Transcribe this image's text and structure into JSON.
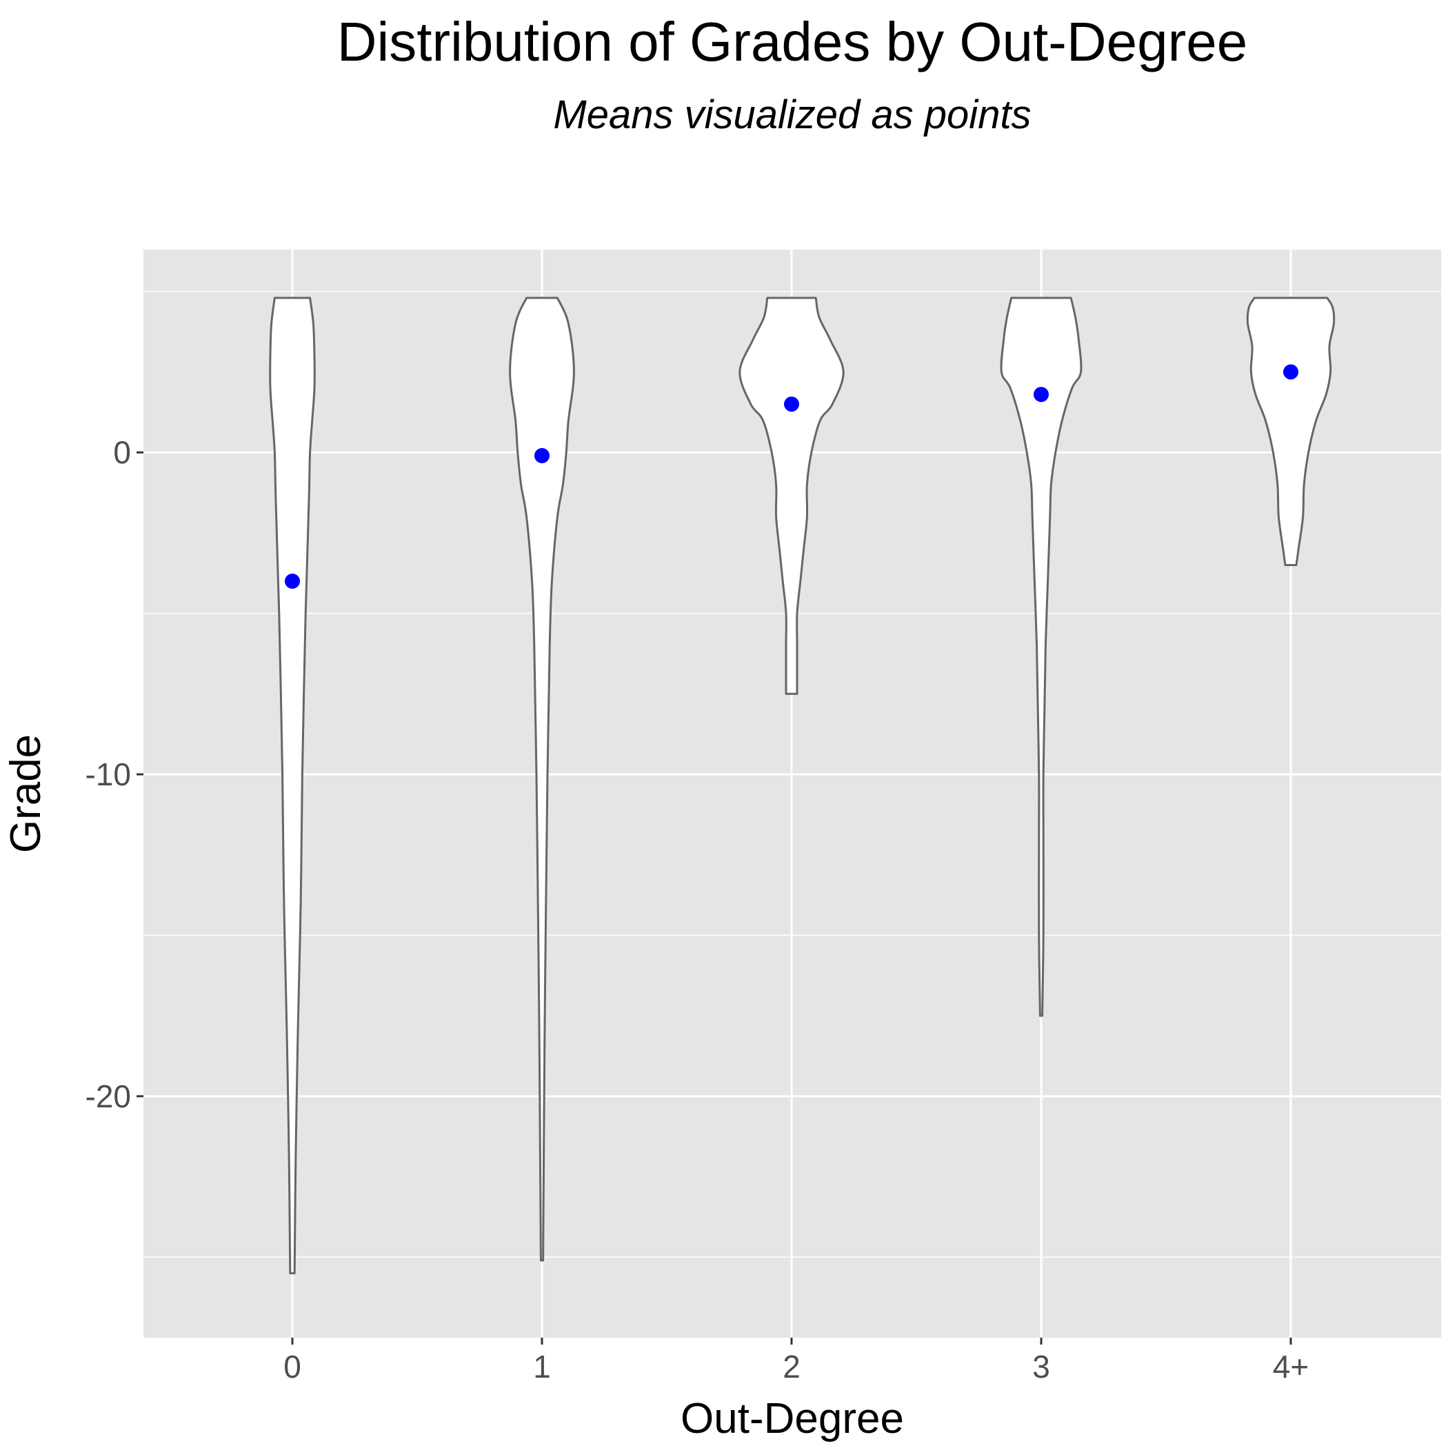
{
  "chart_data": {
    "type": "violin",
    "title": "Distribution of Grades by Out-Degree",
    "subtitle": "Means visualized as points",
    "xlabel": "Out-Degree",
    "ylabel": "Grade",
    "categories": [
      "0",
      "1",
      "2",
      "3",
      "4+"
    ],
    "ylim": [
      -27.5,
      6.3
    ],
    "yticks": [
      0,
      -10,
      -20
    ],
    "ytick_labels": [
      "0",
      "-10",
      "-20"
    ],
    "grid": true,
    "means": [
      -4.0,
      -0.1,
      1.5,
      1.8,
      2.5
    ],
    "violins": [
      {
        "category": "0",
        "min": -25.5,
        "max": 4.8,
        "profile": [
          [
            -25.5,
            0.02
          ],
          [
            -22.0,
            0.03
          ],
          [
            -18.0,
            0.05
          ],
          [
            -15.0,
            0.07
          ],
          [
            -13.0,
            0.08
          ],
          [
            -10.0,
            0.09
          ],
          [
            -5.0,
            0.12
          ],
          [
            -1.5,
            0.15
          ],
          [
            0.0,
            0.16
          ],
          [
            1.0,
            0.18
          ],
          [
            2.0,
            0.2
          ],
          [
            3.0,
            0.2
          ],
          [
            4.0,
            0.19
          ],
          [
            4.8,
            0.16
          ]
        ]
      },
      {
        "category": "1",
        "min": -25.1,
        "max": 4.8,
        "profile": [
          [
            -25.1,
            0.01
          ],
          [
            -20.0,
            0.02
          ],
          [
            -16.0,
            0.03
          ],
          [
            -10.0,
            0.05
          ],
          [
            -8.0,
            0.06
          ],
          [
            -6.0,
            0.07
          ],
          [
            -4.0,
            0.09
          ],
          [
            -2.0,
            0.14
          ],
          [
            -1.0,
            0.19
          ],
          [
            0.0,
            0.22
          ],
          [
            1.0,
            0.24
          ],
          [
            2.5,
            0.29
          ],
          [
            4.0,
            0.24
          ],
          [
            4.8,
            0.14
          ]
        ]
      },
      {
        "category": "2",
        "min": -7.5,
        "max": 4.8,
        "profile": [
          [
            -7.5,
            0.05
          ],
          [
            -6.0,
            0.05
          ],
          [
            -5.0,
            0.05
          ],
          [
            -4.0,
            0.08
          ],
          [
            -3.0,
            0.11
          ],
          [
            -2.0,
            0.14
          ],
          [
            -1.0,
            0.14
          ],
          [
            0.0,
            0.18
          ],
          [
            1.0,
            0.26
          ],
          [
            1.5,
            0.37
          ],
          [
            2.5,
            0.47
          ],
          [
            3.5,
            0.35
          ],
          [
            4.2,
            0.25
          ],
          [
            4.8,
            0.22
          ]
        ]
      },
      {
        "category": "3",
        "min": -17.5,
        "max": 4.8,
        "profile": [
          [
            -17.5,
            0.01
          ],
          [
            -15.0,
            0.02
          ],
          [
            -12.0,
            0.02
          ],
          [
            -10.0,
            0.02
          ],
          [
            -8.0,
            0.03
          ],
          [
            -6.0,
            0.04
          ],
          [
            -4.0,
            0.06
          ],
          [
            -2.0,
            0.08
          ],
          [
            -1.0,
            0.09
          ],
          [
            0.0,
            0.13
          ],
          [
            1.0,
            0.19
          ],
          [
            2.0,
            0.28
          ],
          [
            2.5,
            0.36
          ],
          [
            3.5,
            0.34
          ],
          [
            4.2,
            0.31
          ],
          [
            4.8,
            0.27
          ]
        ]
      },
      {
        "category": "4+",
        "min": -3.5,
        "max": 4.8,
        "profile": [
          [
            -3.5,
            0.05
          ],
          [
            -3.0,
            0.07
          ],
          [
            -2.0,
            0.11
          ],
          [
            -1.0,
            0.12
          ],
          [
            0.0,
            0.16
          ],
          [
            1.0,
            0.23
          ],
          [
            1.8,
            0.32
          ],
          [
            2.5,
            0.36
          ],
          [
            3.3,
            0.35
          ],
          [
            4.0,
            0.39
          ],
          [
            4.5,
            0.38
          ],
          [
            4.8,
            0.33
          ]
        ]
      }
    ]
  },
  "colors": {
    "panel_background": "#E5E5E5",
    "grid": "#FFFFFF",
    "violin_fill": "#FFFFFF",
    "violin_outline": "#666666",
    "mean_point": "#0000FF",
    "tick_label": "#4D4D4D",
    "text": "#000000"
  }
}
